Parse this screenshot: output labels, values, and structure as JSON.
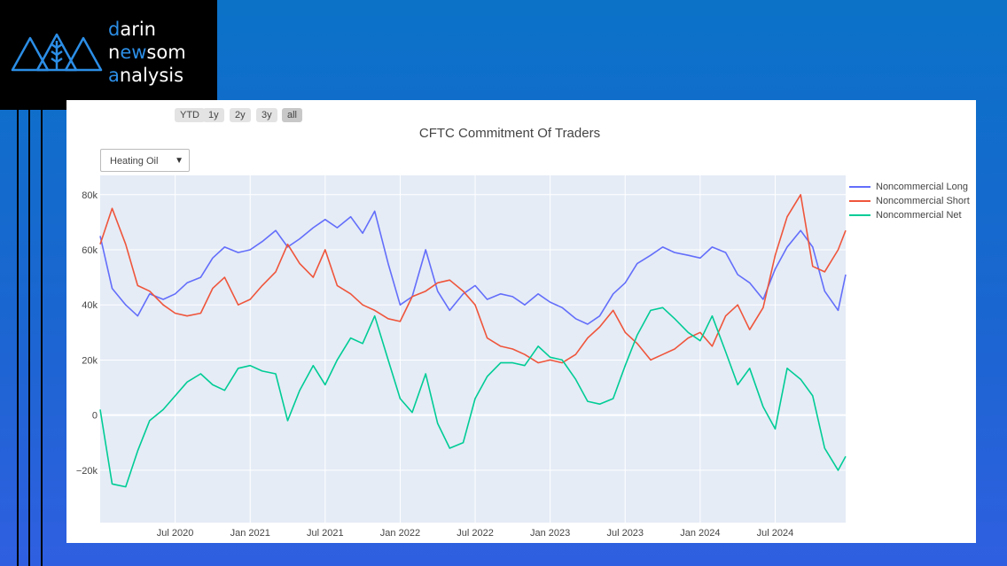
{
  "brand": {
    "line1_accent": "d",
    "line1_rest": "arin",
    "line2_pre": "n",
    "line2_accent": "ew",
    "line2_rest": "som",
    "line3_accent": "a",
    "line3_rest": "nalysis"
  },
  "range_selector": [
    "YTD",
    "1y",
    "2y",
    "3y",
    "all"
  ],
  "dropdown": {
    "selected": "Heating Oil",
    "arrow": "▼"
  },
  "colors": {
    "long": "#636efa",
    "short": "#ef553b",
    "net": "#00cc96",
    "plot_bg": "#e5ecf6"
  },
  "chart_data": {
    "type": "line",
    "title": "CFTC Commitment Of Traders",
    "xlabel": "",
    "ylabel": "",
    "ylim": [
      -39000,
      87000
    ],
    "y_ticks": [
      80000,
      60000,
      40000,
      20000,
      0,
      -20000
    ],
    "y_tick_labels": [
      "80k",
      "60k",
      "40k",
      "20k",
      "0",
      "−20k"
    ],
    "x_range": [
      2020.0,
      2024.97
    ],
    "x_ticks": [
      2020.5,
      2021.0,
      2021.5,
      2022.0,
      2022.5,
      2023.0,
      2023.5,
      2024.0,
      2024.5
    ],
    "x_tick_labels": [
      "Jul 2020",
      "Jan 2021",
      "Jul 2021",
      "Jan 2022",
      "Jul 2022",
      "Jan 2023",
      "Jul 2023",
      "Jan 2024",
      "Jul 2024"
    ],
    "x": [
      2020.0,
      2020.08,
      2020.17,
      2020.25,
      2020.33,
      2020.42,
      2020.5,
      2020.58,
      2020.67,
      2020.75,
      2020.83,
      2020.92,
      2021.0,
      2021.08,
      2021.17,
      2021.25,
      2021.33,
      2021.42,
      2021.5,
      2021.58,
      2021.67,
      2021.75,
      2021.83,
      2021.92,
      2022.0,
      2022.08,
      2022.17,
      2022.25,
      2022.33,
      2022.42,
      2022.5,
      2022.58,
      2022.67,
      2022.75,
      2022.83,
      2022.92,
      2023.0,
      2023.08,
      2023.17,
      2023.25,
      2023.33,
      2023.42,
      2023.5,
      2023.58,
      2023.67,
      2023.75,
      2023.83,
      2023.92,
      2024.0,
      2024.08,
      2024.17,
      2024.25,
      2024.33,
      2024.42,
      2024.5,
      2024.58,
      2024.67,
      2024.75,
      2024.83,
      2024.92,
      2024.97
    ],
    "series": [
      {
        "name": "Noncommercial Long",
        "values": [
          65000,
          46000,
          40000,
          36000,
          44000,
          42000,
          44000,
          48000,
          50000,
          57000,
          61000,
          59000,
          60000,
          63000,
          67000,
          61000,
          64000,
          68000,
          71000,
          68000,
          72000,
          66000,
          74000,
          55000,
          40000,
          43000,
          60000,
          45000,
          38000,
          44000,
          47000,
          42000,
          44000,
          43000,
          40000,
          44000,
          41000,
          39000,
          35000,
          33000,
          36000,
          44000,
          48000,
          55000,
          58000,
          61000,
          59000,
          58000,
          57000,
          61000,
          59000,
          51000,
          48000,
          42000,
          53000,
          61000,
          67000,
          61000,
          45000,
          38000,
          51000
        ]
      },
      {
        "name": "Noncommercial Short",
        "values": [
          62000,
          75000,
          62000,
          47000,
          45000,
          40000,
          37000,
          36000,
          37000,
          46000,
          50000,
          40000,
          42000,
          47000,
          52000,
          62000,
          55000,
          50000,
          60000,
          47000,
          44000,
          40000,
          38000,
          35000,
          34000,
          43000,
          45000,
          48000,
          49000,
          45000,
          40000,
          28000,
          25000,
          24000,
          22000,
          19000,
          20000,
          19000,
          22000,
          28000,
          32000,
          38000,
          30000,
          26000,
          20000,
          22000,
          24000,
          28000,
          30000,
          25000,
          36000,
          40000,
          31000,
          39000,
          58000,
          72000,
          80000,
          54000,
          52000,
          60000,
          67000
        ]
      },
      {
        "name": "Noncommercial Net",
        "values": [
          2000,
          -25000,
          -26000,
          -13000,
          -2000,
          2000,
          7000,
          12000,
          15000,
          11000,
          9000,
          17000,
          18000,
          16000,
          15000,
          -2000,
          9000,
          18000,
          11000,
          20000,
          28000,
          26000,
          36000,
          20000,
          6000,
          1000,
          15000,
          -3000,
          -12000,
          -10000,
          6000,
          14000,
          19000,
          19000,
          18000,
          25000,
          21000,
          20000,
          13000,
          5000,
          4000,
          6000,
          18000,
          29000,
          38000,
          39000,
          35000,
          30000,
          27000,
          36000,
          23000,
          11000,
          17000,
          3000,
          -5000,
          17000,
          13000,
          7000,
          -12000,
          -20000,
          -15000
        ]
      }
    ]
  }
}
